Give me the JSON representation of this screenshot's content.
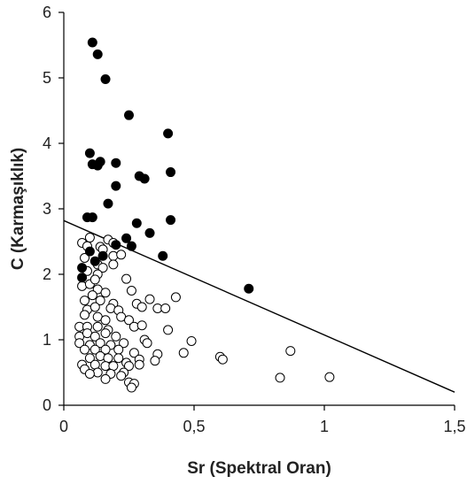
{
  "chart_data": {
    "type": "scatter",
    "xlabel": "Sr (Spektral Oran)",
    "ylabel": "C (Karmaşıklık)",
    "xlim": [
      0,
      1.5
    ],
    "ylim": [
      0,
      6
    ],
    "xticks": [
      "0",
      "0,5",
      "1",
      "1,5"
    ],
    "xtick_values": [
      0,
      0.5,
      1,
      1.5
    ],
    "yticks": [
      "0",
      "1",
      "2",
      "3",
      "4",
      "5",
      "6"
    ],
    "ytick_values": [
      0,
      1,
      2,
      3,
      4,
      5,
      6
    ],
    "grid": false,
    "legend": "none",
    "series": [
      {
        "marker": "filled-circle",
        "color": "#000000",
        "points": [
          [
            0.11,
            5.54
          ],
          [
            0.13,
            5.36
          ],
          [
            0.16,
            4.98
          ],
          [
            0.25,
            4.43
          ],
          [
            0.1,
            3.85
          ],
          [
            0.4,
            4.15
          ],
          [
            0.11,
            3.68
          ],
          [
            0.13,
            3.66
          ],
          [
            0.14,
            3.72
          ],
          [
            0.2,
            3.7
          ],
          [
            0.41,
            3.56
          ],
          [
            0.29,
            3.5
          ],
          [
            0.31,
            3.46
          ],
          [
            0.2,
            3.35
          ],
          [
            0.17,
            3.08
          ],
          [
            0.09,
            2.87
          ],
          [
            0.11,
            2.87
          ],
          [
            0.28,
            2.78
          ],
          [
            0.41,
            2.83
          ],
          [
            0.33,
            2.63
          ],
          [
            0.2,
            2.45
          ],
          [
            0.24,
            2.55
          ],
          [
            0.26,
            2.43
          ],
          [
            0.1,
            2.35
          ],
          [
            0.15,
            2.28
          ],
          [
            0.12,
            2.2
          ],
          [
            0.38,
            2.28
          ],
          [
            0.07,
            2.1
          ],
          [
            0.07,
            1.95
          ],
          [
            0.71,
            1.78
          ]
        ]
      },
      {
        "marker": "open-circle",
        "color": "#000000",
        "points": [
          [
            0.07,
            2.48
          ],
          [
            0.09,
            2.43
          ],
          [
            0.1,
            2.56
          ],
          [
            0.17,
            2.53
          ],
          [
            0.19,
            2.48
          ],
          [
            0.14,
            2.42
          ],
          [
            0.15,
            2.38
          ],
          [
            0.08,
            2.25
          ],
          [
            0.19,
            2.28
          ],
          [
            0.22,
            2.3
          ],
          [
            0.13,
            2.15
          ],
          [
            0.15,
            2.1
          ],
          [
            0.19,
            2.15
          ],
          [
            0.09,
            2.05
          ],
          [
            0.13,
            2.0
          ],
          [
            0.07,
            1.82
          ],
          [
            0.1,
            1.85
          ],
          [
            0.12,
            1.92
          ],
          [
            0.24,
            1.93
          ],
          [
            0.13,
            1.77
          ],
          [
            0.11,
            1.68
          ],
          [
            0.16,
            1.72
          ],
          [
            0.08,
            1.6
          ],
          [
            0.14,
            1.6
          ],
          [
            0.19,
            1.55
          ],
          [
            0.26,
            1.75
          ],
          [
            0.28,
            1.55
          ],
          [
            0.33,
            1.62
          ],
          [
            0.36,
            1.48
          ],
          [
            0.3,
            1.5
          ],
          [
            0.43,
            1.65
          ],
          [
            0.39,
            1.48
          ],
          [
            0.09,
            1.46
          ],
          [
            0.12,
            1.5
          ],
          [
            0.18,
            1.48
          ],
          [
            0.21,
            1.45
          ],
          [
            0.08,
            1.38
          ],
          [
            0.13,
            1.35
          ],
          [
            0.16,
            1.3
          ],
          [
            0.22,
            1.35
          ],
          [
            0.25,
            1.3
          ],
          [
            0.06,
            1.2
          ],
          [
            0.09,
            1.2
          ],
          [
            0.13,
            1.2
          ],
          [
            0.17,
            1.15
          ],
          [
            0.27,
            1.2
          ],
          [
            0.3,
            1.22
          ],
          [
            0.4,
            1.15
          ],
          [
            0.06,
            1.05
          ],
          [
            0.09,
            1.1
          ],
          [
            0.12,
            1.05
          ],
          [
            0.16,
            1.1
          ],
          [
            0.2,
            1.05
          ],
          [
            0.31,
            1.0
          ],
          [
            0.06,
            0.95
          ],
          [
            0.1,
            0.92
          ],
          [
            0.14,
            0.95
          ],
          [
            0.18,
            0.92
          ],
          [
            0.23,
            0.95
          ],
          [
            0.32,
            0.95
          ],
          [
            0.49,
            0.98
          ],
          [
            0.08,
            0.85
          ],
          [
            0.12,
            0.85
          ],
          [
            0.16,
            0.85
          ],
          [
            0.21,
            0.85
          ],
          [
            0.27,
            0.8
          ],
          [
            0.36,
            0.78
          ],
          [
            0.46,
            0.8
          ],
          [
            0.87,
            0.83
          ],
          [
            0.1,
            0.72
          ],
          [
            0.14,
            0.75
          ],
          [
            0.17,
            0.72
          ],
          [
            0.21,
            0.72
          ],
          [
            0.24,
            0.65
          ],
          [
            0.29,
            0.7
          ],
          [
            0.35,
            0.68
          ],
          [
            0.6,
            0.74
          ],
          [
            0.61,
            0.7
          ],
          [
            0.07,
            0.62
          ],
          [
            0.12,
            0.62
          ],
          [
            0.16,
            0.6
          ],
          [
            0.19,
            0.6
          ],
          [
            0.25,
            0.6
          ],
          [
            0.29,
            0.62
          ],
          [
            0.08,
            0.55
          ],
          [
            0.13,
            0.5
          ],
          [
            0.18,
            0.48
          ],
          [
            0.23,
            0.5
          ],
          [
            0.1,
            0.48
          ],
          [
            0.16,
            0.4
          ],
          [
            0.22,
            0.45
          ],
          [
            0.25,
            0.35
          ],
          [
            0.27,
            0.33
          ],
          [
            0.26,
            0.27
          ],
          [
            0.83,
            0.42
          ],
          [
            1.02,
            0.43
          ]
        ]
      }
    ],
    "lines": [
      {
        "x": [
          0,
          1.5
        ],
        "y": [
          2.82,
          0.2
        ],
        "color": "#000000"
      }
    ]
  }
}
